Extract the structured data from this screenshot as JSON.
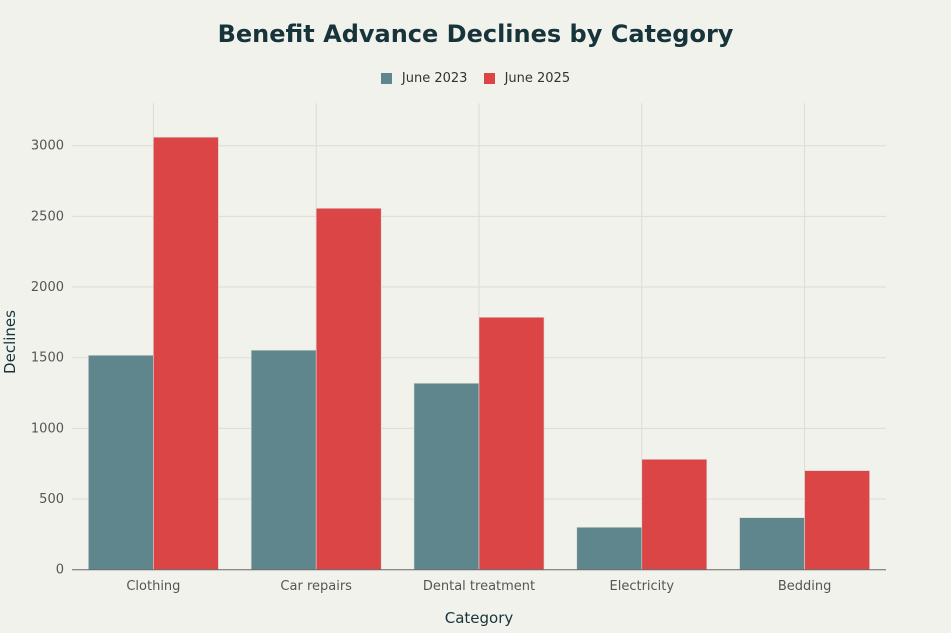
{
  "chart_data": {
    "type": "bar",
    "title": "Benefit Advance Declines by Category",
    "xlabel": "Category",
    "ylabel": "Declines",
    "categories": [
      "Clothing",
      "Car repairs",
      "Dental treatment",
      "Electricity",
      "Bedding"
    ],
    "series": [
      {
        "name": "June 2023",
        "color": "#5e868c",
        "values": [
          1517,
          1553,
          1319,
          300,
          368
        ]
      },
      {
        "name": "June 2025",
        "color": "#db4546",
        "values": [
          3060,
          2557,
          1786,
          781,
          701
        ]
      }
    ],
    "ylim": [
      0,
      3300
    ],
    "yticks": [
      0,
      500,
      1000,
      1500,
      2000,
      2500,
      3000
    ],
    "grid": true,
    "legend_position": "top-center"
  }
}
